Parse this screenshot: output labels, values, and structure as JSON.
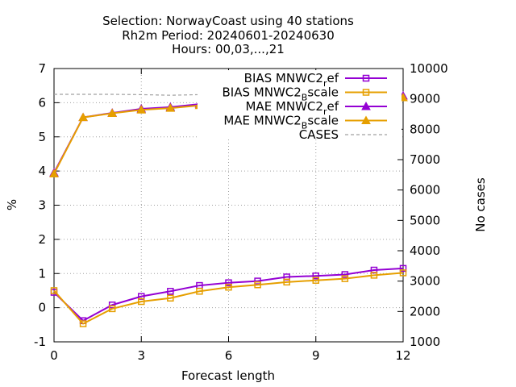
{
  "chart_data": {
    "type": "line",
    "title_lines": [
      "Selection: NorwayCoast using    40 stations",
      "Rh2m   Period: 20240601-20240630",
      "Hours: 00,03,...,21"
    ],
    "xlabel": "Forecast length",
    "ylabel": "%",
    "y2label": "No cases",
    "xlim": [
      0,
      12
    ],
    "ylim": [
      -1,
      7
    ],
    "y2lim": [
      1000,
      10000
    ],
    "xticks": [
      0,
      3,
      6,
      9,
      12
    ],
    "yticks": [
      -1,
      0,
      1,
      2,
      3,
      4,
      5,
      6,
      7
    ],
    "y2ticks": [
      1000,
      2000,
      3000,
      4000,
      5000,
      6000,
      7000,
      8000,
      9000,
      10000
    ],
    "grid": true,
    "legend_position": "top-right",
    "x": [
      0,
      1,
      2,
      3,
      4,
      5,
      6,
      7,
      8,
      9,
      10,
      11,
      12
    ],
    "series": [
      {
        "name": "BIAS MNWC2_ref",
        "legend_main": "BIAS MNWC2",
        "legend_sub": "r",
        "legend_tail": "ef",
        "axis": "y1",
        "marker": "square",
        "color": "#9400d3",
        "values": [
          0.45,
          -0.38,
          0.08,
          0.33,
          0.48,
          0.65,
          0.73,
          0.78,
          0.9,
          0.93,
          0.97,
          1.1,
          1.15
        ]
      },
      {
        "name": "BIAS MNWC2_Bscale",
        "legend_main": "BIAS MNWC2",
        "legend_sub": "B",
        "legend_tail": "scale",
        "axis": "y1",
        "marker": "square",
        "color": "#e69f00",
        "values": [
          0.5,
          -0.47,
          -0.03,
          0.18,
          0.28,
          0.48,
          0.6,
          0.67,
          0.75,
          0.8,
          0.85,
          0.95,
          1.02
        ]
      },
      {
        "name": "MAE MNWC2_ref",
        "legend_main": "MAE MNWC2",
        "legend_sub": "r",
        "legend_tail": "ef",
        "axis": "y1",
        "marker": "triangle",
        "color": "#9400d3",
        "values": [
          3.95,
          5.57,
          5.7,
          5.82,
          5.87,
          5.96,
          6.0,
          6.0,
          6.04,
          6.1,
          6.07,
          6.15,
          6.2
        ]
      },
      {
        "name": "MAE MNWC2_Bscale",
        "legend_main": "MAE MNWC2",
        "legend_sub": "B",
        "legend_tail": "scale",
        "axis": "y1",
        "marker": "triangle",
        "color": "#e69f00",
        "values": [
          3.92,
          5.57,
          5.69,
          5.79,
          5.84,
          5.92,
          5.94,
          5.94,
          5.98,
          6.03,
          6.02,
          6.08,
          6.15
        ]
      },
      {
        "name": "CASES",
        "legend_main": "CASES",
        "legend_sub": "",
        "legend_tail": "",
        "axis": "y2",
        "marker": "none",
        "dashed": true,
        "color": "#a0a0a0",
        "values": [
          9150,
          9150,
          9150,
          9140,
          9120,
          9140,
          9130,
          9130,
          9120,
          9120,
          9110,
          9110,
          9110
        ]
      }
    ]
  }
}
